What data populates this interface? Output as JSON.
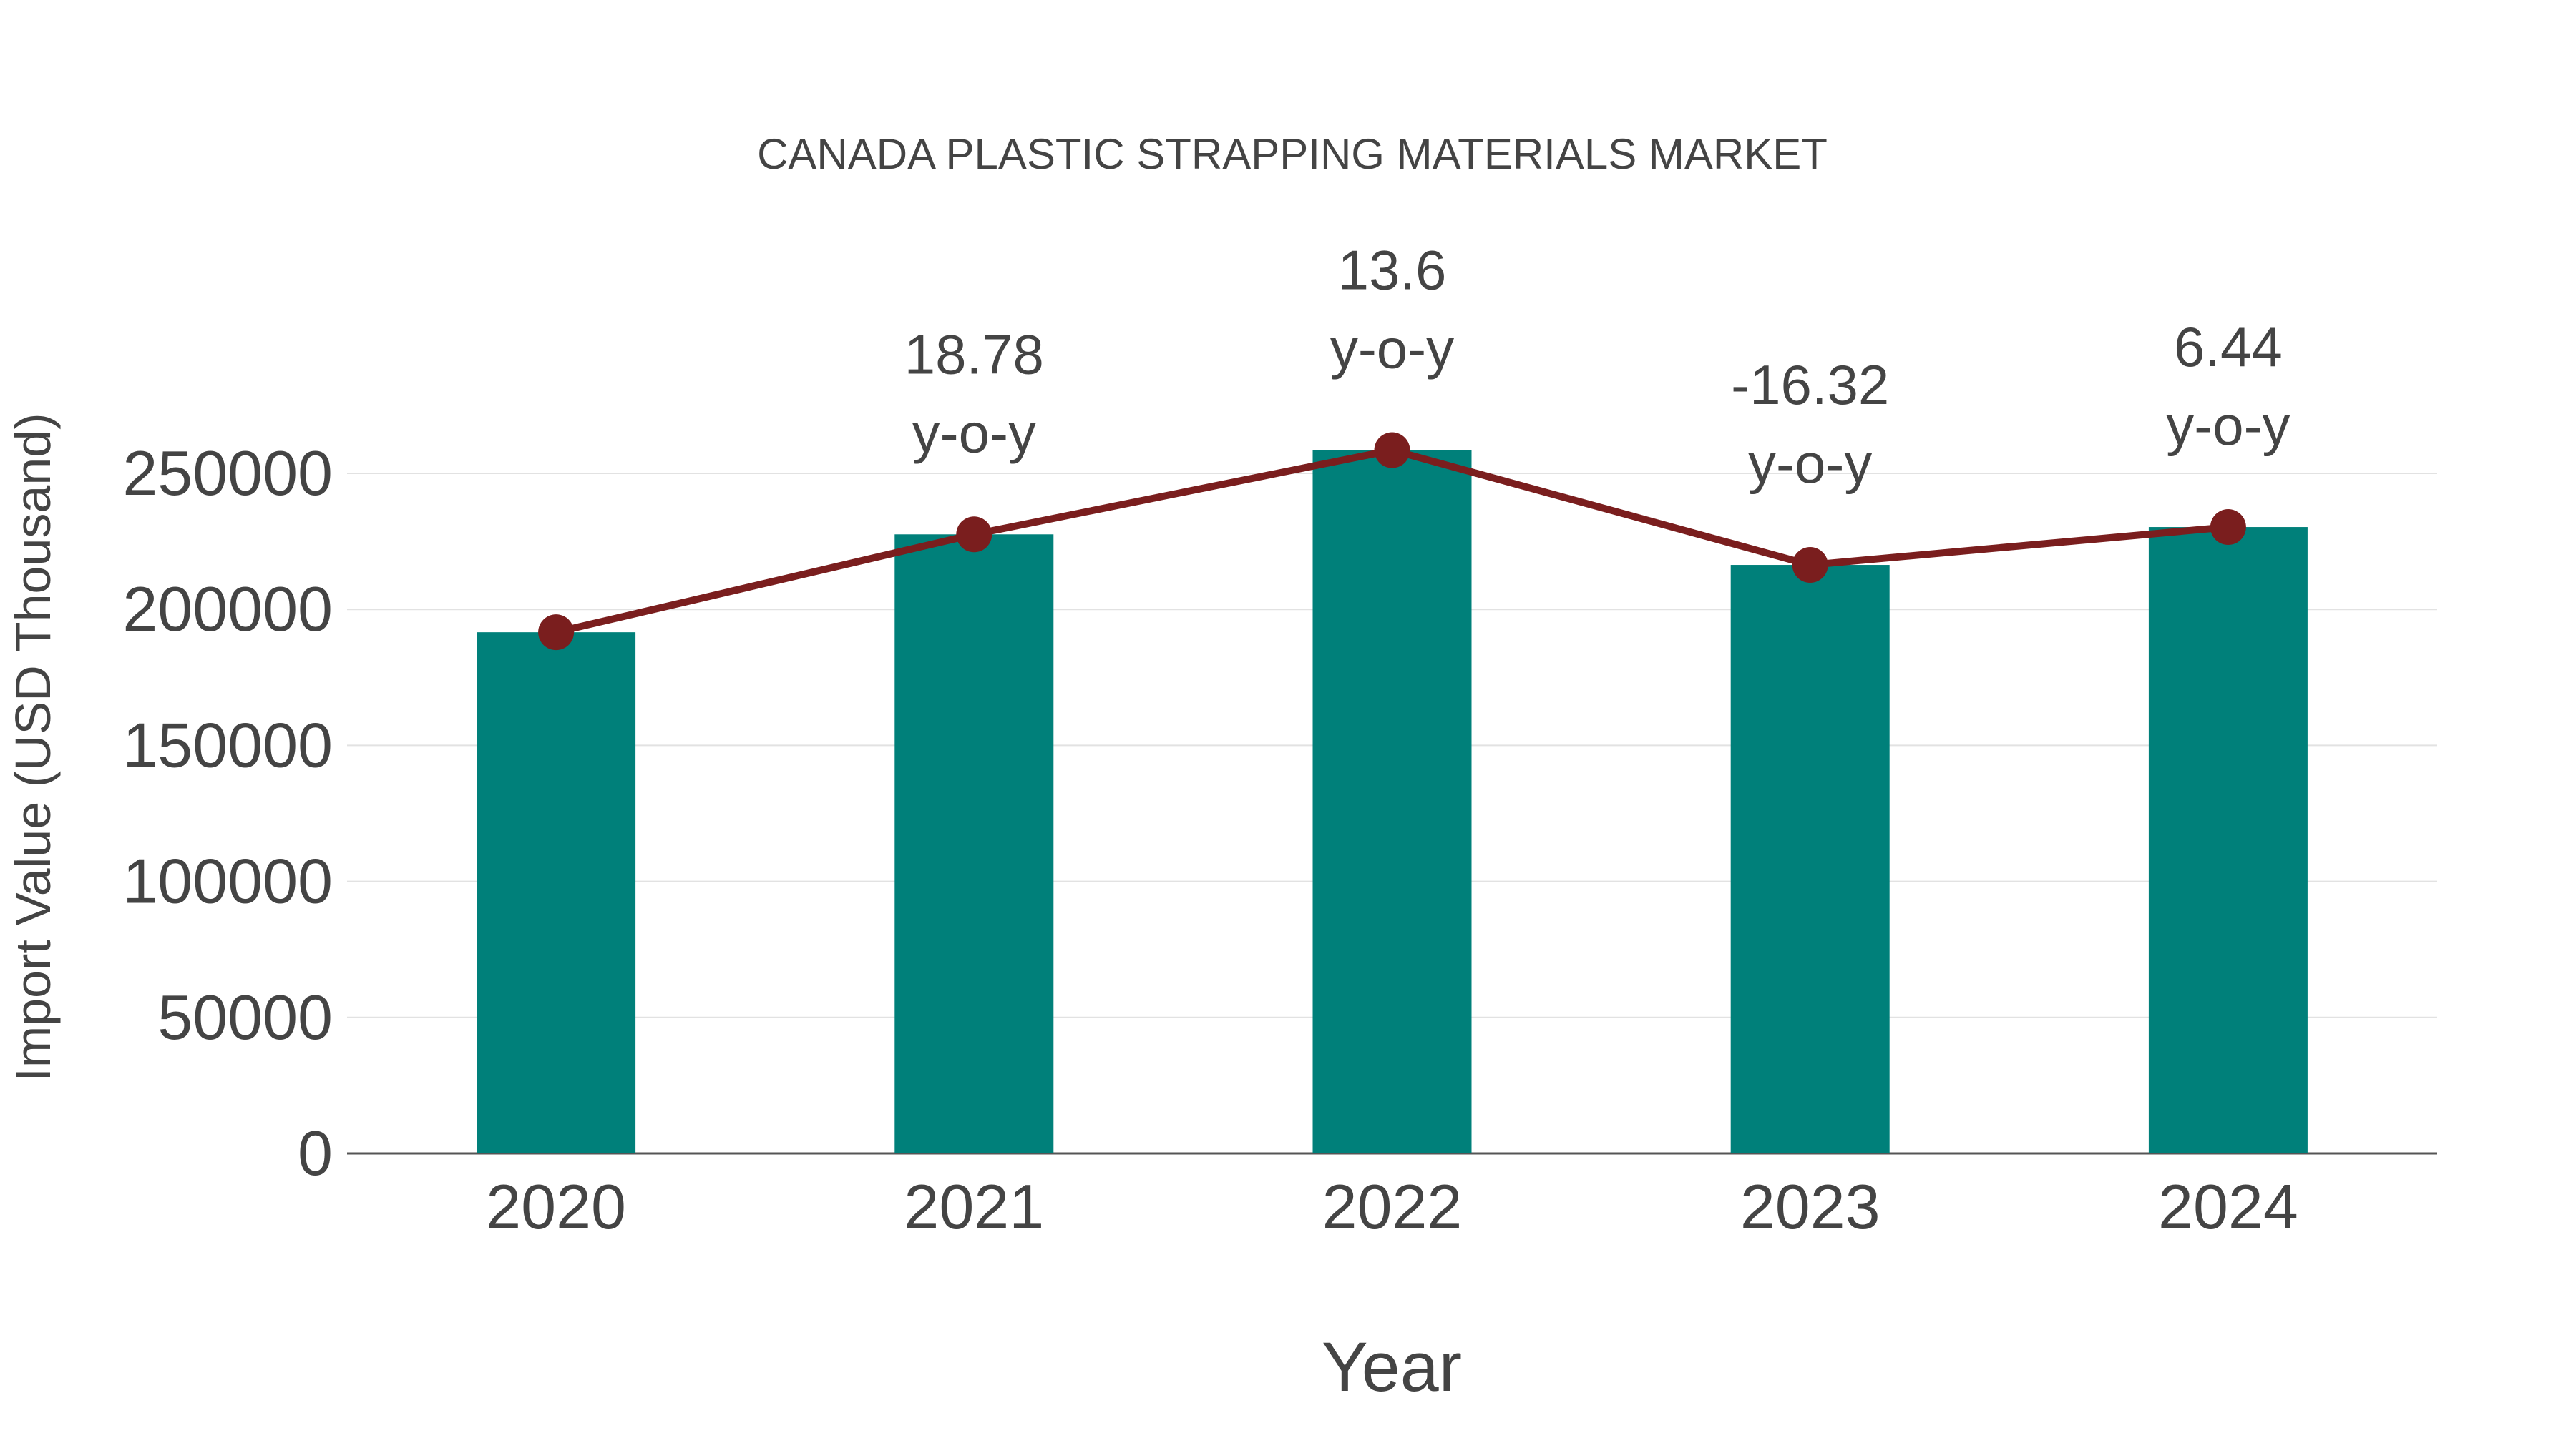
{
  "chart_data": {
    "type": "bar",
    "title": "CANADA PLASTIC STRAPPING MATERIALS MARKET",
    "xlabel": "Year",
    "ylabel": "Import Value (USD Thousand)",
    "categories": [
      "2020",
      "2021",
      "2022",
      "2023",
      "2024"
    ],
    "series": [
      {
        "name": "Import Value",
        "type": "bar",
        "color": "#00807a",
        "values": [
          191600,
          227580,
          258530,
          216340,
          230270
        ]
      },
      {
        "name": "Trend",
        "type": "line",
        "color": "#7a1e1e",
        "values": [
          191600,
          227580,
          258530,
          216340,
          230270
        ]
      }
    ],
    "annotations": [
      {
        "category": "2021",
        "value": "18.78",
        "suffix": "y-o-y"
      },
      {
        "category": "2022",
        "value": "13.6",
        "suffix": "y-o-y"
      },
      {
        "category": "2023",
        "value": "-16.32",
        "suffix": "y-o-y"
      },
      {
        "category": "2024",
        "value": "6.44",
        "suffix": "y-o-y"
      }
    ],
    "yticks": [
      0,
      50000,
      100000,
      150000,
      200000,
      250000
    ],
    "ylim": [
      0,
      275000
    ],
    "grid": true,
    "legend": "none"
  }
}
